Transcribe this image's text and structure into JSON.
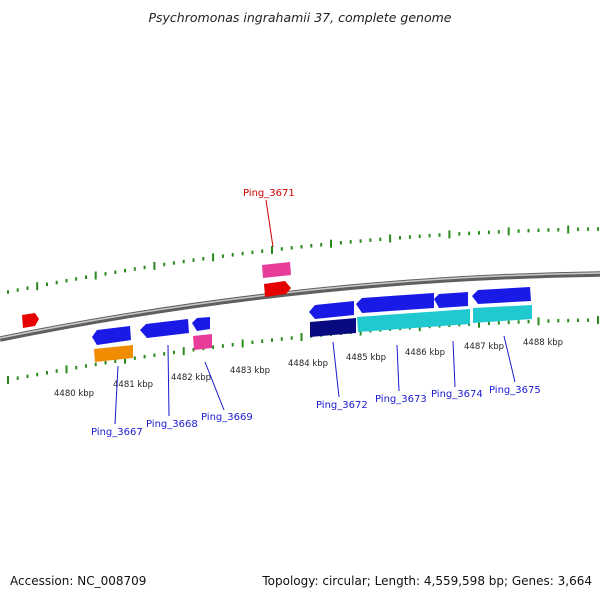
{
  "title": "Psychromonas ingrahamii 37, complete genome",
  "footer": {
    "accession": "Accession: NC_008709",
    "summary": "Topology: circular; Length: 4,559,598 bp; Genes: 3,664"
  },
  "scale_labels": [
    "4480 kbp",
    "4481 kbp",
    "4482 kbp",
    "4483 kbp",
    "4484 kbp",
    "4485 kbp",
    "4486 kbp",
    "4487 kbp",
    "4488 kbp"
  ],
  "gene_labels": [
    "Ping_3671",
    "Ping_3667",
    "Ping_3668",
    "Ping_3669",
    "Ping_3672",
    "Ping_3673",
    "Ping_3674",
    "Ping_3675"
  ],
  "colors": {
    "background": "#ffffff",
    "backbone": "#8a8a8a",
    "tick": "#2a8a1e",
    "gene_blue": "#1a1ae6",
    "gene_navy": "#0a0a80",
    "gene_cyan": "#20c8d0",
    "gene_orange": "#f08c00",
    "gene_pink": "#e83c9a",
    "gene_red": "#e60000",
    "label_blue": "#1a1ad0",
    "label_red": "#cc0000"
  }
}
